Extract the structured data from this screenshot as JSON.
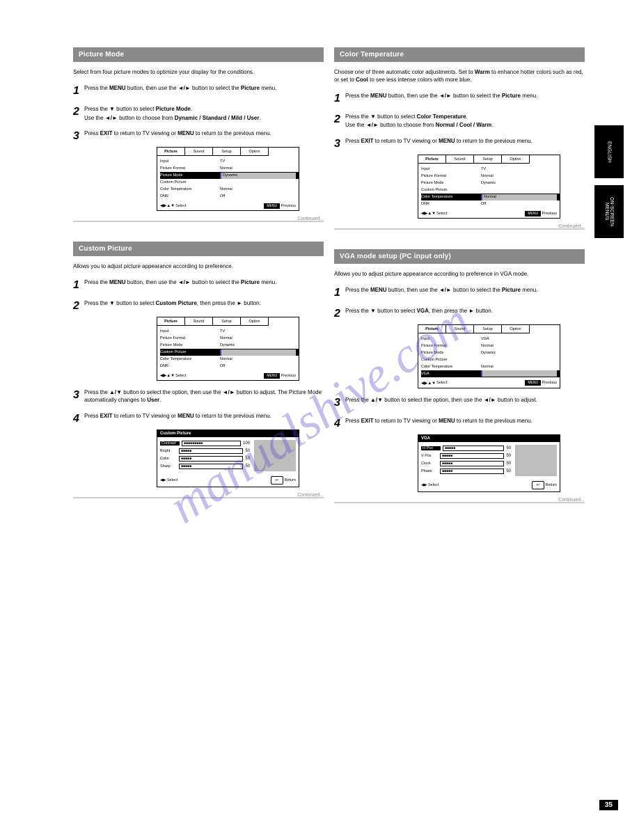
{
  "page_number": "35",
  "watermark": "manualshive.com",
  "side_tabs": [
    "ENGLISH",
    "ON-SCREEN MENUS"
  ],
  "colors": {
    "bar": "#8a8a8a",
    "hl_bg": "#000000",
    "hl_fg": "#ffffff",
    "grey": "#bdbdbd",
    "accent": "#5b3aa8",
    "divider": "#cccccc"
  },
  "left": {
    "s1": {
      "title": "Picture Mode",
      "intro": "Select from four picture modes to optimize your display for the conditions.",
      "steps": [
        {
          "n": "1",
          "body": "Press the <b>MENU</b> button, then use the <b>◄/►</b> button to select the <b>Picture</b> menu."
        },
        {
          "n": "2",
          "body": "Press the <b>▼</b> button to select <b>Picture Mode</b>.",
          "sub": "Use the <b>◄/►</b> button to choose from <b>Dynamic / Standard / Mild / User</b>."
        },
        {
          "n": "3",
          "body": "Press <b>EXIT</b> to return to TV viewing or <b>MENU</b> to return to the previous menu."
        }
      ],
      "osd": {
        "tabs": [
          "Picture",
          "Sound",
          "Setup",
          "Option"
        ],
        "rows_before": [
          {
            "k": "Input",
            "v": "TV"
          },
          {
            "k": "Picture Format",
            "v": "Normal"
          }
        ],
        "hl": {
          "k": "Picture Mode",
          "v": "Dynamic"
        },
        "rows_after": [
          {
            "k": "Custom Picture",
            "v": ""
          },
          {
            "k": "Color Temperature",
            "v": "Normal"
          },
          {
            "k": "DNR",
            "v": "Off"
          }
        ],
        "footer_left": "Select",
        "footer_btn": "MENU",
        "footer_right": "Previous"
      },
      "continued": "Continued..."
    },
    "s2": {
      "title": "Custom Picture",
      "intro": "Allows you to adjust picture appearance according to preference.",
      "steps1": [
        {
          "n": "1",
          "body": "Press the <b>MENU</b> button, then use the <b>◄/►</b> button to select the <b>Picture</b> menu."
        },
        {
          "n": "2",
          "body": "Press the <b>▼</b> button to select <b>Custom Picture</b>, then press the <b>►</b> button."
        }
      ],
      "osd1": {
        "tabs": [
          "Picture",
          "Sound",
          "Setup",
          "Option"
        ],
        "rows_before": [
          {
            "k": "Input",
            "v": "TV"
          },
          {
            "k": "Picture Format",
            "v": "Normal"
          },
          {
            "k": "Picture Mode",
            "v": "Dynamic"
          }
        ],
        "hl": {
          "k": "Custom Picture",
          "v": ""
        },
        "rows_after": [
          {
            "k": "Color Temperature",
            "v": "Normal"
          },
          {
            "k": "DNR",
            "v": "Off"
          }
        ],
        "footer_left": "Select",
        "footer_btn": "MENU",
        "footer_right": "Previous"
      },
      "steps2": [
        {
          "n": "3",
          "body": "Press the <b>▲/▼</b> button to select the option, then use the <b>◄/►</b> button to adjust. The Picture Mode automatically changes to <b>User</b>."
        },
        {
          "n": "4",
          "body": "Press <b>EXIT</b> to return to TV viewing or <b>MENU</b> to return to the previous menu."
        }
      ],
      "osd2": {
        "title": "Custom Picture",
        "rows": [
          {
            "k": "Contrast",
            "v": "■■■■■■■■■",
            "n": "100",
            "hl": true
          },
          {
            "k": "Bright",
            "v": "■■■■■",
            "n": "50"
          },
          {
            "k": "Color",
            "v": "■■■■■",
            "n": "50"
          },
          {
            "k": "Sharp",
            "v": "■■■■■",
            "n": "50"
          }
        ],
        "footer_left": "Select",
        "footer_right": "Return"
      },
      "continued": "Continued..."
    }
  },
  "right": {
    "s1": {
      "title": "Color Temperature",
      "intro": "Choose one of three automatic color adjustments. Set to <b>Warm</b> to enhance hotter colors such as red, or set to <b>Cool</b> to see less intense colors with more blue.",
      "steps": [
        {
          "n": "1",
          "body": "Press the <b>MENU</b> button, then use the <b>◄/►</b> button to select the <b>Picture</b> menu."
        },
        {
          "n": "2",
          "body": "Press the <b>▼</b> button to select <b>Color Temperature</b>.",
          "sub": "Use the <b>◄/►</b> button to choose from <b>Normal / Cool / Warm</b>."
        },
        {
          "n": "3",
          "body": "Press <b>EXIT</b> to return to TV viewing or <b>MENU</b> to return to the previous menu."
        }
      ],
      "osd": {
        "tabs": [
          "Picture",
          "Sound",
          "Setup",
          "Option"
        ],
        "rows_before": [
          {
            "k": "Input",
            "v": "TV"
          },
          {
            "k": "Picture Format",
            "v": "Normal"
          },
          {
            "k": "Picture Mode",
            "v": "Dynamic"
          },
          {
            "k": "Custom Picture",
            "v": ""
          }
        ],
        "hl": {
          "k": "Color Temperature",
          "v": "Normal"
        },
        "rows_after": [
          {
            "k": "DNR",
            "v": "Off"
          }
        ],
        "footer_left": "Select",
        "footer_btn": "MENU",
        "footer_right": "Previous"
      },
      "continued": "Continued..."
    },
    "s2": {
      "title": "VGA mode setup (PC input only)",
      "intro": "Allows you to adjust picture appearance according to preference in VGA mode.",
      "steps1": [
        {
          "n": "1",
          "body": "Press the <b>MENU</b> button, then use the <b>◄/►</b> button to select the <b>Picture</b> menu."
        },
        {
          "n": "2",
          "body": "Press the <b>▼</b> button to select <b>VGA</b>, then press the <b>►</b> button."
        }
      ],
      "osd1": {
        "tabs": [
          "Picture",
          "Sound",
          "Setup",
          "Option"
        ],
        "rows_before": [
          {
            "k": "Input",
            "v": "VGA"
          },
          {
            "k": "Picture Format",
            "v": "Normal"
          },
          {
            "k": "Picture Mode",
            "v": "Dynamic"
          },
          {
            "k": "Custom Picture",
            "v": ""
          },
          {
            "k": "Color Temperature",
            "v": "Normal"
          }
        ],
        "hl": {
          "k": "VGA",
          "v": ""
        },
        "rows_after": [],
        "footer_left": "Select",
        "footer_btn": "MENU",
        "footer_right": "Previous"
      },
      "steps2": [
        {
          "n": "3",
          "body": "Press the <b>▲/▼</b> button to select the option, then use the <b>◄/►</b> button to adjust."
        },
        {
          "n": "4",
          "body": "Press <b>EXIT</b> to return to TV viewing or <b>MENU</b> to return to the previous menu."
        }
      ],
      "osd2": {
        "title": "VGA",
        "rows": [
          {
            "k": "H Pos",
            "v": "■■■■■",
            "n": "50",
            "hl": true
          },
          {
            "k": "V Pos",
            "v": "■■■■■",
            "n": "50"
          },
          {
            "k": "Clock",
            "v": "■■■■■",
            "n": "50"
          },
          {
            "k": "Phase",
            "v": "■■■■■",
            "n": "50"
          }
        ],
        "footer_left": "Select",
        "footer_right": "Return"
      },
      "continued": "Continued..."
    }
  }
}
